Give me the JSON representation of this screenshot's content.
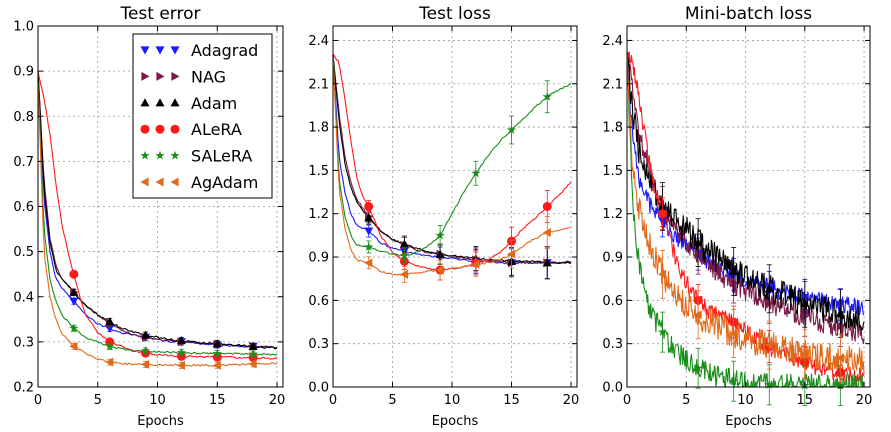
{
  "chart_data": [
    {
      "type": "line",
      "title": "Test error",
      "xlabel": "Epochs",
      "ylabel": "",
      "xlim": [
        0,
        20.5
      ],
      "ylim": [
        0.2,
        1.0
      ],
      "xticks": [
        0,
        5,
        10,
        15,
        20
      ],
      "yticks": [
        0.2,
        0.3,
        0.4,
        0.5,
        0.6,
        0.7,
        0.8,
        0.9,
        1.0
      ],
      "ytick_labels": [
        "0.2",
        "0.3",
        "0.4",
        "0.5",
        "0.6",
        "0.7",
        "0.8",
        "0.9",
        "1.0"
      ],
      "grid": true,
      "legend_position": "top-right",
      "series": [
        {
          "name": "Adagrad",
          "x": [
            0,
            0.5,
            1,
            1.5,
            2,
            3,
            4,
            5,
            6,
            7,
            8,
            9,
            10,
            11,
            12,
            13,
            14,
            15,
            16,
            17,
            18,
            19,
            20
          ],
          "values": [
            0.9,
            0.62,
            0.5,
            0.44,
            0.42,
            0.39,
            0.36,
            0.34,
            0.33,
            0.32,
            0.315,
            0.31,
            0.305,
            0.3,
            0.3,
            0.298,
            0.295,
            0.293,
            0.292,
            0.29,
            0.29,
            0.288,
            0.287
          ]
        },
        {
          "name": "NAG",
          "x": [
            0,
            0.5,
            1,
            1.5,
            2,
            3,
            4,
            5,
            6,
            7,
            8,
            9,
            10,
            11,
            12,
            13,
            14,
            15,
            16,
            17,
            18,
            19,
            20
          ],
          "values": [
            0.9,
            0.66,
            0.53,
            0.47,
            0.44,
            0.41,
            0.38,
            0.36,
            0.34,
            0.325,
            0.315,
            0.31,
            0.305,
            0.303,
            0.3,
            0.298,
            0.296,
            0.295,
            0.293,
            0.292,
            0.29,
            0.289,
            0.288
          ]
        },
        {
          "name": "Adam",
          "x": [
            0,
            0.5,
            1,
            1.5,
            2,
            3,
            4,
            5,
            6,
            7,
            8,
            9,
            10,
            11,
            12,
            13,
            14,
            15,
            16,
            17,
            18,
            19,
            20
          ],
          "values": [
            0.9,
            0.64,
            0.52,
            0.46,
            0.44,
            0.41,
            0.38,
            0.36,
            0.345,
            0.33,
            0.322,
            0.315,
            0.31,
            0.306,
            0.303,
            0.3,
            0.298,
            0.296,
            0.294,
            0.292,
            0.29,
            0.288,
            0.286
          ]
        },
        {
          "name": "ALeRA",
          "x": [
            0,
            0.5,
            1,
            1.5,
            2,
            2.5,
            3,
            3.5,
            4,
            5,
            6,
            7,
            8,
            9,
            10,
            11,
            12,
            13,
            14,
            15,
            16,
            17,
            18,
            19,
            20
          ],
          "values": [
            0.9,
            0.84,
            0.76,
            0.65,
            0.56,
            0.5,
            0.45,
            0.4,
            0.36,
            0.32,
            0.3,
            0.29,
            0.28,
            0.275,
            0.272,
            0.27,
            0.268,
            0.268,
            0.267,
            0.266,
            0.266,
            0.265,
            0.265,
            0.264,
            0.263
          ]
        },
        {
          "name": "SALeRA",
          "x": [
            0,
            0.5,
            1,
            1.5,
            2,
            3,
            4,
            5,
            6,
            7,
            8,
            9,
            10,
            11,
            12,
            13,
            14,
            15,
            16,
            17,
            18,
            19,
            20
          ],
          "values": [
            0.88,
            0.55,
            0.44,
            0.39,
            0.36,
            0.33,
            0.31,
            0.3,
            0.29,
            0.285,
            0.28,
            0.28,
            0.278,
            0.277,
            0.276,
            0.275,
            0.275,
            0.274,
            0.274,
            0.273,
            0.273,
            0.272,
            0.272
          ]
        },
        {
          "name": "AgAdam",
          "x": [
            0,
            0.5,
            1,
            1.5,
            2,
            3,
            4,
            5,
            6,
            7,
            8,
            9,
            10,
            11,
            12,
            13,
            14,
            15,
            16,
            17,
            18,
            19,
            20
          ],
          "values": [
            0.88,
            0.5,
            0.4,
            0.35,
            0.32,
            0.29,
            0.275,
            0.262,
            0.255,
            0.252,
            0.25,
            0.25,
            0.249,
            0.249,
            0.248,
            0.248,
            0.248,
            0.248,
            0.249,
            0.25,
            0.251,
            0.252,
            0.253
          ]
        }
      ]
    },
    {
      "type": "line",
      "title": "Test loss",
      "xlabel": "Epochs",
      "ylabel": "",
      "xlim": [
        0,
        20.5
      ],
      "ylim": [
        0.0,
        2.5
      ],
      "xticks": [
        0,
        5,
        10,
        15,
        20
      ],
      "yticks": [
        0.0,
        0.3,
        0.6,
        0.9,
        1.2,
        1.5,
        1.8,
        2.1,
        2.4
      ],
      "ytick_labels": [
        "0.0",
        "0.3",
        "0.6",
        "0.9",
        "1.2",
        "1.5",
        "1.8",
        "2.1",
        "2.4"
      ],
      "grid": true,
      "series": [
        {
          "name": "Adagrad",
          "x": [
            0,
            0.5,
            1,
            1.5,
            2,
            3,
            4,
            5,
            6,
            7,
            8,
            9,
            10,
            11,
            12,
            13,
            14,
            15,
            16,
            17,
            18,
            19,
            20
          ],
          "values": [
            2.3,
            1.6,
            1.35,
            1.2,
            1.12,
            1.08,
            1.0,
            0.96,
            0.94,
            0.92,
            0.91,
            0.9,
            0.89,
            0.88,
            0.87,
            0.87,
            0.86,
            0.86,
            0.86,
            0.86,
            0.86,
            0.86,
            0.86
          ]
        },
        {
          "name": "NAG",
          "x": [
            0,
            0.5,
            1,
            1.5,
            2,
            3,
            4,
            5,
            6,
            7,
            8,
            9,
            10,
            11,
            12,
            13,
            14,
            15,
            16,
            17,
            18,
            19,
            20
          ],
          "values": [
            2.3,
            1.9,
            1.6,
            1.42,
            1.3,
            1.18,
            1.08,
            1.02,
            0.98,
            0.95,
            0.93,
            0.92,
            0.9,
            0.89,
            0.88,
            0.87,
            0.87,
            0.86,
            0.86,
            0.86,
            0.86,
            0.86,
            0.87
          ]
        },
        {
          "name": "Adam",
          "x": [
            0,
            0.5,
            1,
            1.5,
            2,
            3,
            4,
            5,
            6,
            7,
            8,
            9,
            10,
            11,
            12,
            13,
            14,
            15,
            16,
            17,
            18,
            19,
            20
          ],
          "values": [
            2.3,
            1.85,
            1.55,
            1.38,
            1.28,
            1.17,
            1.08,
            1.02,
            0.99,
            0.96,
            0.94,
            0.92,
            0.91,
            0.9,
            0.89,
            0.88,
            0.88,
            0.87,
            0.87,
            0.87,
            0.86,
            0.86,
            0.86
          ]
        },
        {
          "name": "ALeRA",
          "x": [
            0,
            0.5,
            1,
            1.5,
            2,
            2.5,
            3,
            4,
            5,
            6,
            7,
            8,
            9,
            10,
            11,
            12,
            13,
            14,
            15,
            16,
            17,
            18,
            19,
            20
          ],
          "values": [
            2.3,
            2.25,
            2.0,
            1.7,
            1.45,
            1.32,
            1.25,
            1.05,
            0.93,
            0.87,
            0.84,
            0.82,
            0.81,
            0.82,
            0.83,
            0.86,
            0.88,
            0.93,
            1.01,
            1.1,
            1.17,
            1.25,
            1.33,
            1.42
          ]
        },
        {
          "name": "SALeRA",
          "x": [
            0,
            0.5,
            1,
            1.5,
            2,
            3,
            4,
            5,
            6,
            7,
            8,
            9,
            10,
            11,
            12,
            13,
            14,
            15,
            16,
            17,
            18,
            19,
            20
          ],
          "values": [
            2.3,
            1.45,
            1.18,
            1.05,
            0.98,
            0.97,
            0.94,
            0.92,
            0.91,
            0.93,
            0.98,
            1.05,
            1.2,
            1.35,
            1.48,
            1.6,
            1.7,
            1.78,
            1.86,
            1.94,
            2.01,
            2.06,
            2.1
          ]
        },
        {
          "name": "AgAdam",
          "x": [
            0,
            0.5,
            1,
            1.5,
            2,
            3,
            4,
            5,
            6,
            7,
            8,
            9,
            10,
            11,
            12,
            13,
            14,
            15,
            16,
            17,
            18,
            19,
            20
          ],
          "values": [
            2.3,
            1.38,
            1.1,
            0.95,
            0.88,
            0.86,
            0.8,
            0.78,
            0.78,
            0.79,
            0.8,
            0.81,
            0.82,
            0.83,
            0.85,
            0.86,
            0.88,
            0.92,
            0.98,
            1.03,
            1.07,
            1.09,
            1.11
          ]
        }
      ]
    },
    {
      "type": "line",
      "title": "Mini-batch loss",
      "xlabel": "Epochs",
      "ylabel": "",
      "xlim": [
        0,
        20.5
      ],
      "ylim": [
        0.0,
        2.5
      ],
      "xticks": [
        0,
        5,
        10,
        15,
        20
      ],
      "yticks": [
        0.0,
        0.3,
        0.6,
        0.9,
        1.2,
        1.5,
        1.8,
        2.1,
        2.4
      ],
      "ytick_labels": [
        "0.0",
        "0.3",
        "0.6",
        "0.9",
        "1.2",
        "1.5",
        "1.8",
        "2.1",
        "2.4"
      ],
      "grid": true,
      "series": [
        {
          "name": "Adagrad",
          "x": [
            0,
            0.5,
            1,
            2,
            3,
            4,
            5,
            6,
            7,
            8,
            9,
            10,
            11,
            12,
            13,
            14,
            15,
            16,
            17,
            18,
            19,
            20
          ],
          "values": [
            2.3,
            1.7,
            1.45,
            1.25,
            1.15,
            1.05,
            0.98,
            0.92,
            0.86,
            0.82,
            0.78,
            0.74,
            0.72,
            0.69,
            0.66,
            0.64,
            0.62,
            0.6,
            0.58,
            0.57,
            0.56,
            0.55
          ]
        },
        {
          "name": "NAG",
          "x": [
            0,
            0.5,
            1,
            2,
            3,
            4,
            5,
            6,
            7,
            8,
            9,
            10,
            11,
            12,
            13,
            14,
            15,
            16,
            17,
            18,
            19,
            20
          ],
          "values": [
            2.3,
            2.05,
            1.75,
            1.45,
            1.25,
            1.12,
            1.02,
            0.92,
            0.85,
            0.78,
            0.72,
            0.67,
            0.62,
            0.58,
            0.55,
            0.52,
            0.49,
            0.46,
            0.44,
            0.42,
            0.4,
            0.38
          ]
        },
        {
          "name": "Adam",
          "x": [
            0,
            0.5,
            1,
            2,
            3,
            4,
            5,
            6,
            7,
            8,
            9,
            10,
            11,
            12,
            13,
            14,
            15,
            16,
            17,
            18,
            19,
            20
          ],
          "values": [
            2.3,
            1.9,
            1.65,
            1.4,
            1.25,
            1.15,
            1.08,
            1.0,
            0.93,
            0.86,
            0.8,
            0.75,
            0.72,
            0.68,
            0.64,
            0.61,
            0.58,
            0.56,
            0.53,
            0.51,
            0.5,
            0.48
          ]
        },
        {
          "name": "ALeRA",
          "x": [
            0,
            0.5,
            1,
            1.5,
            2,
            2.5,
            3,
            4,
            5,
            6,
            7,
            8,
            9,
            10,
            11,
            12,
            13,
            14,
            15,
            16,
            17,
            18,
            19,
            20
          ],
          "values": [
            2.3,
            2.25,
            2.0,
            1.75,
            1.5,
            1.35,
            1.2,
            0.92,
            0.72,
            0.6,
            0.52,
            0.48,
            0.45,
            0.38,
            0.32,
            0.28,
            0.24,
            0.2,
            0.17,
            0.14,
            0.12,
            0.1,
            0.08,
            0.07
          ]
        },
        {
          "name": "SALeRA",
          "x": [
            0,
            0.5,
            1,
            1.5,
            2,
            3,
            4,
            5,
            6,
            7,
            8,
            9,
            10,
            11,
            12,
            13,
            14,
            15,
            16,
            17,
            18,
            19,
            20
          ],
          "values": [
            2.3,
            1.2,
            0.85,
            0.65,
            0.52,
            0.38,
            0.25,
            0.18,
            0.13,
            0.09,
            0.06,
            0.04,
            0.03,
            0.02,
            0.015,
            0.01,
            0.01,
            0.01,
            0.01,
            0.01,
            0.01,
            0.01,
            0.01
          ]
        },
        {
          "name": "AgAdam",
          "x": [
            0,
            0.5,
            1,
            1.5,
            2,
            3,
            4,
            5,
            6,
            7,
            8,
            9,
            10,
            11,
            12,
            13,
            14,
            15,
            16,
            17,
            18,
            19,
            20
          ],
          "values": [
            2.3,
            1.5,
            1.25,
            1.1,
            0.95,
            0.78,
            0.65,
            0.57,
            0.5,
            0.45,
            0.41,
            0.37,
            0.34,
            0.31,
            0.29,
            0.27,
            0.25,
            0.23,
            0.22,
            0.21,
            0.2,
            0.19,
            0.18
          ]
        }
      ]
    }
  ],
  "legend": [
    {
      "name": "Adagrad",
      "color": "#1a1aff",
      "marker": "triangle-down"
    },
    {
      "name": "NAG",
      "color": "#7b1b4a",
      "marker": "triangle-right"
    },
    {
      "name": "Adam",
      "color": "#000000",
      "marker": "triangle-up"
    },
    {
      "name": "ALeRA",
      "color": "#ff1a1a",
      "marker": "circle"
    },
    {
      "name": "SALeRA",
      "color": "#1a8c1a",
      "marker": "star"
    },
    {
      "name": "AgAdam",
      "color": "#e06a1a",
      "marker": "triangle-left"
    }
  ],
  "colors": {
    "Adagrad": "#1a1aff",
    "NAG": "#7b1b4a",
    "Adam": "#000000",
    "ALeRA": "#ff1a1a",
    "SALeRA": "#1a8c1a",
    "AgAdam": "#e06a1a"
  },
  "markers": {
    "Adagrad": "triangle-down",
    "NAG": "triangle-right",
    "Adam": "triangle-up",
    "ALeRA": "circle",
    "SALeRA": "star",
    "AgAdam": "triangle-left"
  },
  "marker_x": [
    3,
    6,
    9,
    12,
    15,
    18
  ]
}
